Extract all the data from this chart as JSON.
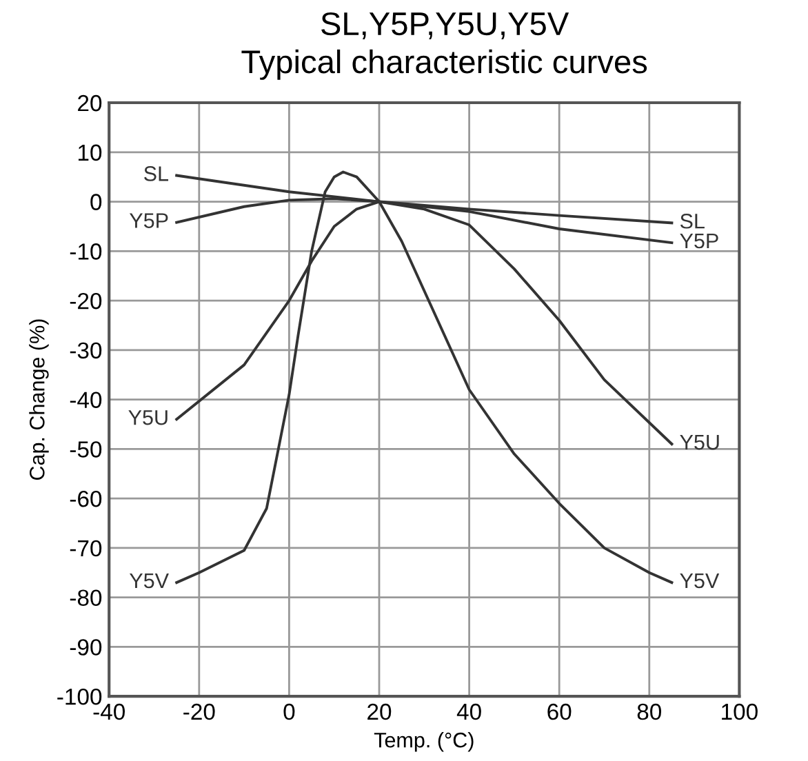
{
  "chart_data": {
    "type": "line",
    "title": "SL,Y5P,Y5U,Y5V",
    "subtitle": "Typical characteristic curves",
    "xlabel": "Temp. (°C)",
    "ylabel": "Cap. Change (%)",
    "xlim": [
      -40,
      100
    ],
    "xticks": [
      -40,
      -20,
      0,
      20,
      40,
      60,
      80,
      100
    ],
    "ylim": [
      -100,
      20
    ],
    "yticks": [
      -100,
      -90,
      -80,
      -70,
      -60,
      -50,
      -40,
      -30,
      -20,
      -10,
      0,
      10,
      20
    ],
    "grid": true,
    "marker": "none",
    "line_style": "solid",
    "series": [
      {
        "name": "SL",
        "color": "#333333",
        "x": [
          -25,
          0,
          20,
          40,
          60,
          85
        ],
        "values": [
          5.3,
          2,
          0,
          -1.5,
          -2.8,
          -4.3
        ]
      },
      {
        "name": "Y5P",
        "color": "#333333",
        "x": [
          -25,
          -10,
          0,
          10,
          20,
          40,
          60,
          85
        ],
        "values": [
          -4.2,
          -1,
          0.3,
          0.6,
          0,
          -2,
          -5.5,
          -8.3
        ]
      },
      {
        "name": "Y5U",
        "color": "#333333",
        "x": [
          -25,
          -10,
          0,
          5,
          10,
          15,
          20,
          30,
          40,
          50,
          60,
          70,
          85
        ],
        "values": [
          -44,
          -33,
          -20,
          -12,
          -5,
          -1.5,
          0,
          -1.5,
          -4.7,
          -13.6,
          -24,
          -36,
          -49
        ]
      },
      {
        "name": "Y5V",
        "color": "#333333",
        "x": [
          -25,
          -20,
          -10,
          -5,
          0,
          2,
          5,
          8,
          10,
          12,
          15,
          20,
          25,
          30,
          40,
          50,
          60,
          70,
          80,
          85
        ],
        "values": [
          -77,
          -75,
          -70.5,
          -62,
          -39,
          -27,
          -10,
          2,
          5,
          6,
          5,
          0,
          -8,
          -18,
          -38,
          -51,
          -61,
          -70,
          -75,
          -77
        ]
      }
    ]
  }
}
